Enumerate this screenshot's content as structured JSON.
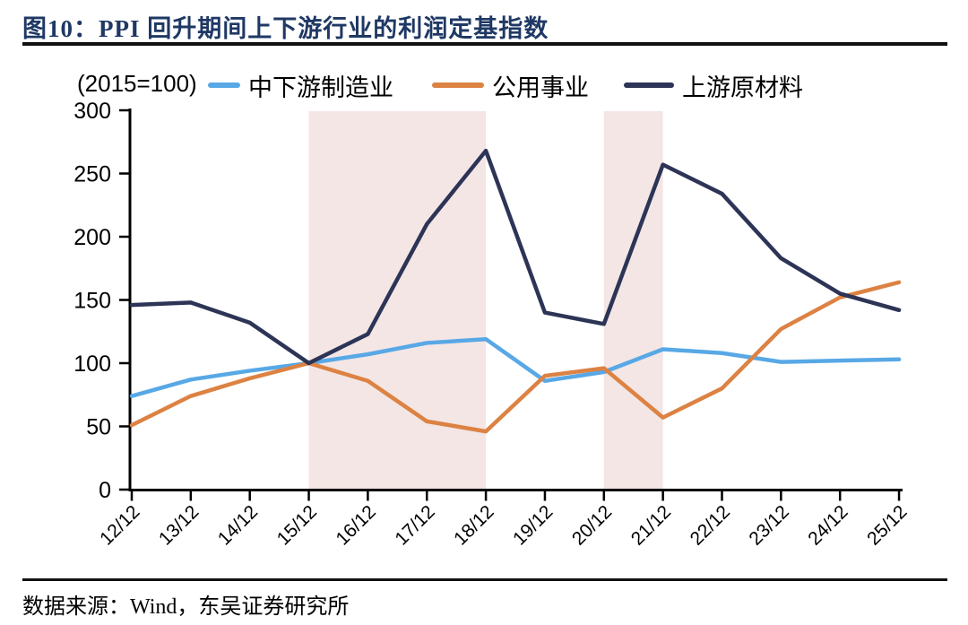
{
  "header": {
    "title": "图10：PPI 回升期间上下游行业的利润定基指数"
  },
  "footer": {
    "source": "数据来源：Wind，东吴证券研究所"
  },
  "chart_data": {
    "type": "line",
    "title": "图10：PPI 回升期间上下游行业的利润定基指数",
    "unit_label": "(2015=100)",
    "categories": [
      "12/12",
      "13/12",
      "14/12",
      "15/12",
      "16/12",
      "17/12",
      "18/12",
      "19/12",
      "20/12",
      "21/12",
      "22/12",
      "23/12",
      "24/12",
      "25/12"
    ],
    "series": [
      {
        "name": "中下游制造业",
        "color": "#58a8e6",
        "swatch_width": 36,
        "values": [
          74,
          87,
          94,
          100,
          107,
          116,
          119,
          86,
          93,
          111,
          108,
          101,
          102,
          103
        ]
      },
      {
        "name": "公用事业",
        "color": "#dc8243",
        "swatch_width": 58,
        "values": [
          51,
          74,
          88,
          100,
          86,
          54,
          46,
          90,
          96,
          57,
          80,
          127,
          152,
          164
        ]
      },
      {
        "name": "上游原材料",
        "color": "#2d3456",
        "swatch_width": 56,
        "values": [
          146,
          148,
          132,
          100,
          123,
          210,
          268,
          140,
          131,
          257,
          234,
          183,
          155,
          142
        ]
      }
    ],
    "highlight_regions": [
      {
        "from": "15/12",
        "to": "18/12",
        "color": "#f3e6e5"
      },
      {
        "from": "20/12",
        "to": "21/12",
        "color": "#f3e6e5"
      }
    ],
    "ylim": [
      0,
      300
    ],
    "ytick_step": 50,
    "yticks": [
      0,
      50,
      100,
      150,
      200,
      250,
      300
    ],
    "grid": false,
    "legend_position": "top",
    "xlabel": "",
    "ylabel": ""
  }
}
